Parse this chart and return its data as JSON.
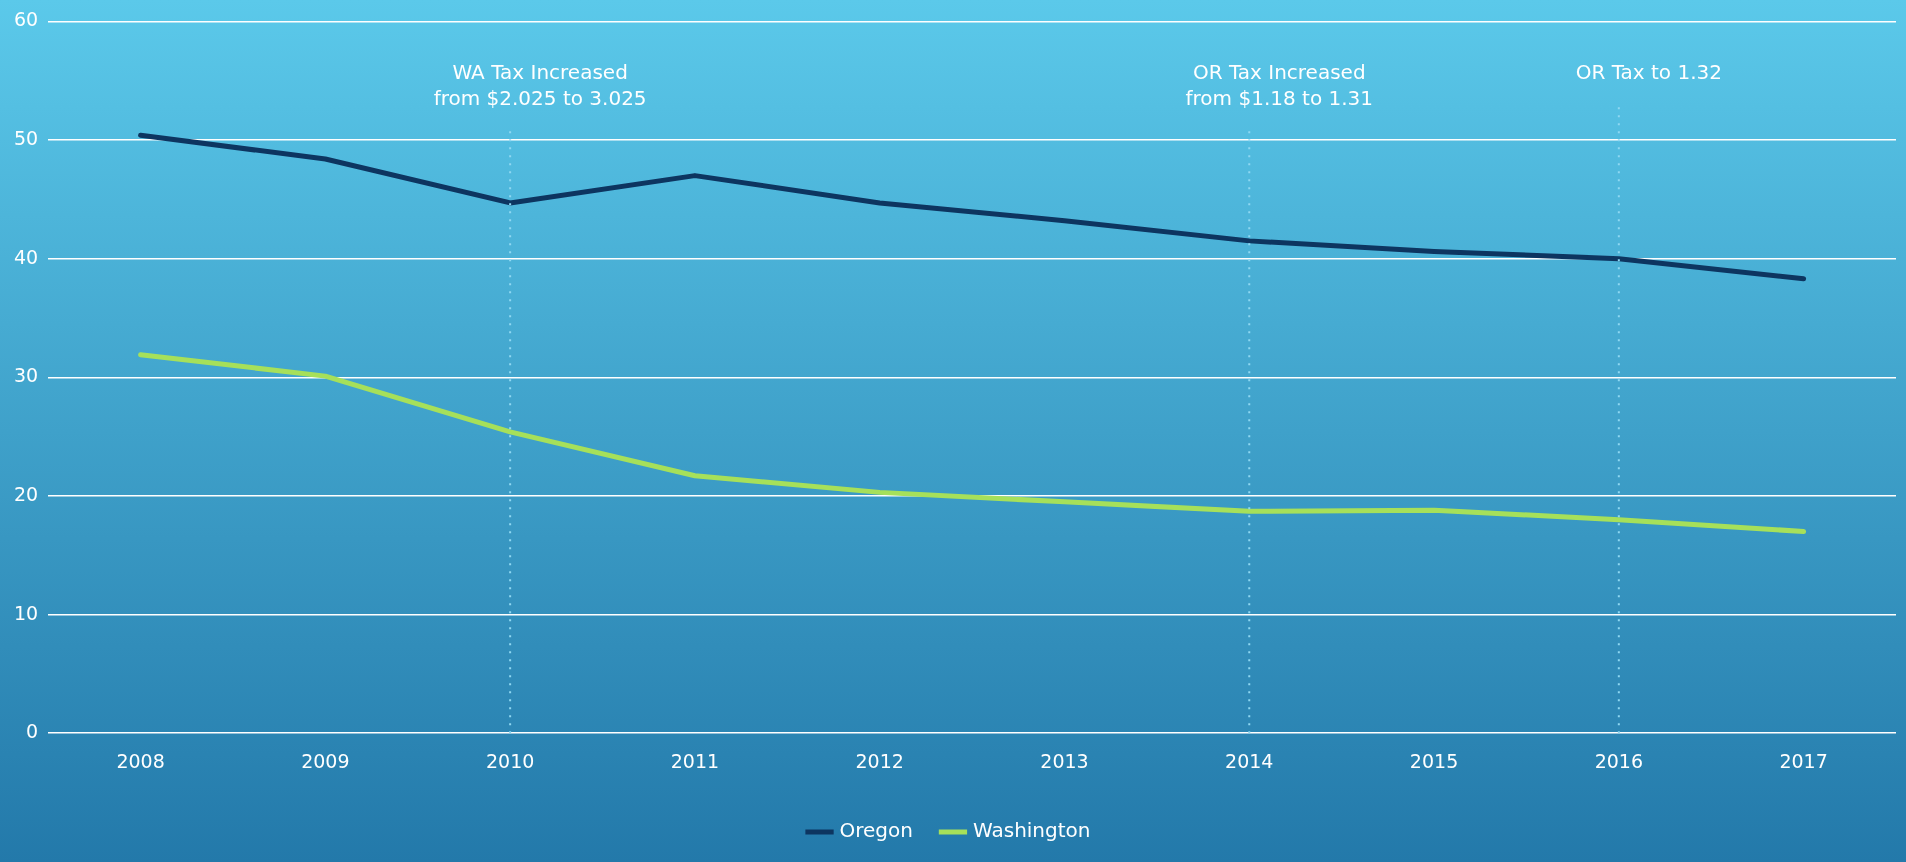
{
  "chart_data": {
    "type": "line",
    "categories": [
      "2008",
      "2009",
      "2010",
      "2011",
      "2012",
      "2013",
      "2014",
      "2015",
      "2016",
      "2017"
    ],
    "series": [
      {
        "name": "Oregon",
        "color": "#0d3560",
        "values": [
          50.4,
          48.4,
          44.7,
          47.0,
          44.7,
          43.2,
          41.5,
          40.6,
          40.0,
          38.3
        ]
      },
      {
        "name": "Washington",
        "color": "#a6e05a",
        "values": [
          31.9,
          30.1,
          25.4,
          21.7,
          20.3,
          19.5,
          18.7,
          18.8,
          18.0,
          17.0
        ]
      }
    ],
    "ylim": [
      0,
      60
    ],
    "yticks": [
      0,
      10,
      20,
      30,
      40,
      50,
      60
    ],
    "grid": "y",
    "legend": "bottom",
    "marker": "none",
    "line_style": "solid",
    "ref_lines": [
      {
        "axis": "x",
        "value": "2010",
        "label": "WA Tax Increased\nfrom $2.025 to 3.025",
        "color": "#8fd8f2",
        "line_style": "dotted"
      },
      {
        "axis": "x",
        "value": "2014",
        "label": "OR Tax Increased\nfrom $1.18 to 1.31",
        "color": "#8fd8f2",
        "line_style": "dotted"
      },
      {
        "axis": "x",
        "value": "2016",
        "label": "OR Tax to 1.32",
        "color": "#8fd8f2",
        "line_style": "dotted"
      }
    ]
  }
}
